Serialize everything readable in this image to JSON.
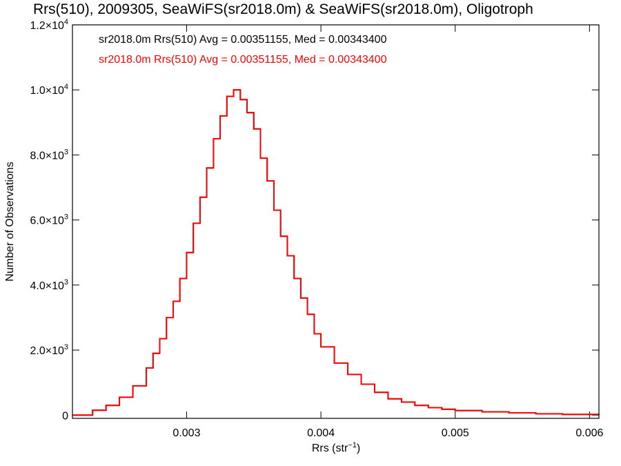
{
  "chart_data": {
    "type": "line",
    "title": "Rrs(510), 2009305, SeaWiFS(sr2018.0m) & SeaWiFS(sr2018.0m), Oligotroph",
    "xlabel": "Rrs (str",
    "xlabel_sup": "−1",
    "xlabel_end": ")",
    "ylabel": "Number of Observations",
    "xlim": [
      0.00215,
      0.00607
    ],
    "ylim": [
      -100,
      12000
    ],
    "x_ticks": [
      {
        "value": 0.003,
        "label": "0.003"
      },
      {
        "value": 0.004,
        "label": "0.004"
      },
      {
        "value": 0.005,
        "label": "0.005"
      },
      {
        "value": 0.006,
        "label": "0.006"
      }
    ],
    "y_ticks": [
      {
        "value": 0,
        "label": "0",
        "sup": ""
      },
      {
        "value": 2000,
        "label": "2.0×10",
        "sup": "3"
      },
      {
        "value": 4000,
        "label": "4.0×10",
        "sup": "3"
      },
      {
        "value": 6000,
        "label": "6.0×10",
        "sup": "3"
      },
      {
        "value": 8000,
        "label": "8.0×10",
        "sup": "3"
      },
      {
        "value": 10000,
        "label": "1.0×10",
        "sup": "4"
      },
      {
        "value": 12000,
        "label": "1.2×10",
        "sup": "4"
      }
    ],
    "legend_placement": "top-left",
    "series": [
      {
        "name": "sr2018.0m Rrs(510) Avg = 0.00351155, Med = 0.00343400",
        "color": "#000000",
        "step": true,
        "x": [
          0.00215,
          0.0023,
          0.0024,
          0.0025,
          0.0026,
          0.0027,
          0.00275,
          0.0028,
          0.00285,
          0.0029,
          0.00295,
          0.003,
          0.00305,
          0.0031,
          0.00315,
          0.0032,
          0.00325,
          0.0033,
          0.00335,
          0.0034,
          0.00345,
          0.0035,
          0.00355,
          0.0036,
          0.00365,
          0.0037,
          0.00375,
          0.0038,
          0.00385,
          0.0039,
          0.00395,
          0.004,
          0.0041,
          0.0042,
          0.0043,
          0.0044,
          0.0045,
          0.0046,
          0.0047,
          0.0048,
          0.0049,
          0.005,
          0.0052,
          0.0054,
          0.0056,
          0.0058,
          0.00607
        ],
        "y": [
          0,
          150,
          300,
          550,
          900,
          1450,
          1900,
          2350,
          3000,
          3500,
          4200,
          5000,
          5900,
          6700,
          7600,
          8500,
          9200,
          9800,
          10000,
          9700,
          9300,
          8800,
          7900,
          7200,
          6300,
          5500,
          4900,
          4200,
          3600,
          3100,
          2500,
          2100,
          1600,
          1250,
          950,
          700,
          500,
          400,
          300,
          230,
          180,
          140,
          100,
          70,
          40,
          20,
          10
        ]
      },
      {
        "name": "sr2018.0m Rrs(510) Avg = 0.00351155, Med = 0.00343400",
        "color": "#ff0000",
        "step": true,
        "x": [
          0.00215,
          0.0023,
          0.0024,
          0.0025,
          0.0026,
          0.0027,
          0.00275,
          0.0028,
          0.00285,
          0.0029,
          0.00295,
          0.003,
          0.00305,
          0.0031,
          0.00315,
          0.0032,
          0.00325,
          0.0033,
          0.00335,
          0.0034,
          0.00345,
          0.0035,
          0.00355,
          0.0036,
          0.00365,
          0.0037,
          0.00375,
          0.0038,
          0.00385,
          0.0039,
          0.00395,
          0.004,
          0.0041,
          0.0042,
          0.0043,
          0.0044,
          0.0045,
          0.0046,
          0.0047,
          0.0048,
          0.0049,
          0.005,
          0.0052,
          0.0054,
          0.0056,
          0.0058,
          0.00607
        ],
        "y": [
          0,
          150,
          300,
          550,
          900,
          1450,
          1900,
          2350,
          3000,
          3500,
          4200,
          5000,
          5900,
          6700,
          7600,
          8500,
          9200,
          9800,
          10000,
          9700,
          9300,
          8800,
          7900,
          7200,
          6300,
          5500,
          4900,
          4200,
          3600,
          3100,
          2500,
          2100,
          1600,
          1250,
          950,
          700,
          500,
          400,
          300,
          230,
          180,
          140,
          100,
          70,
          40,
          20,
          10
        ]
      }
    ]
  }
}
